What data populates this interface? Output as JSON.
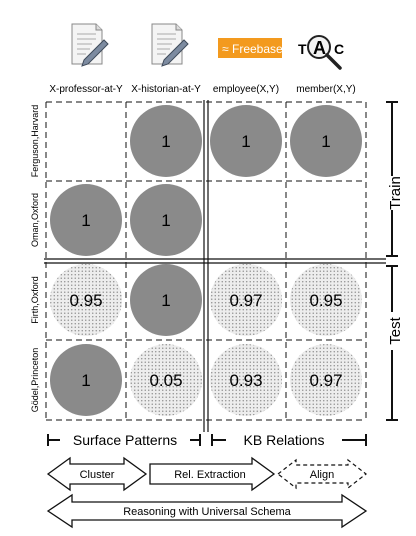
{
  "columns": [
    {
      "label": "X-professor-at-Y",
      "icon": "document-pen-icon"
    },
    {
      "label": "X-historian-at-Y",
      "icon": "document-pen-icon"
    },
    {
      "label": "employee(X,Y)",
      "icon": "freebase-logo",
      "logo_text": "Freebase"
    },
    {
      "label": "member(X,Y)",
      "icon": "tac-logo",
      "logo_letters": [
        "T",
        "A",
        "C"
      ]
    }
  ],
  "rows": [
    {
      "label": "Ferguson,Harvard",
      "cells": [
        null,
        {
          "value": "1",
          "type": "observed"
        },
        {
          "value": "1",
          "type": "observed"
        },
        {
          "value": "1",
          "type": "observed"
        }
      ]
    },
    {
      "label": "Oman,Oxford",
      "cells": [
        {
          "value": "1",
          "type": "observed"
        },
        {
          "value": "1",
          "type": "observed"
        },
        null,
        null
      ]
    },
    {
      "label": "Firth,Oxford",
      "cells": [
        {
          "value": "0.95",
          "type": "predicted"
        },
        {
          "value": "1",
          "type": "observed"
        },
        {
          "value": "0.97",
          "type": "predicted"
        },
        {
          "value": "0.95",
          "type": "predicted"
        }
      ]
    },
    {
      "label": "Gödel,Princeton",
      "cells": [
        {
          "value": "1",
          "type": "observed"
        },
        {
          "value": "0.05",
          "type": "predicted"
        },
        {
          "value": "0.93",
          "type": "predicted"
        },
        {
          "value": "0.97",
          "type": "predicted"
        }
      ]
    }
  ],
  "row_groups": [
    {
      "label": "Train"
    },
    {
      "label": "Test"
    }
  ],
  "column_groups": [
    {
      "label": "Surface Patterns"
    },
    {
      "label": "KB Relations"
    }
  ],
  "arrows": [
    {
      "label": "Cluster",
      "style": "solid"
    },
    {
      "label": "Rel. Extraction",
      "style": "solid"
    },
    {
      "label": "Align",
      "style": "dashed"
    },
    {
      "label": "Reasoning with Universal Schema",
      "style": "solid"
    }
  ],
  "colors": {
    "observed": "#8a8a8a",
    "predicted_fill": "#ececec",
    "predicted_dots": "#888888",
    "freebase_orange": "#f39a1e"
  }
}
